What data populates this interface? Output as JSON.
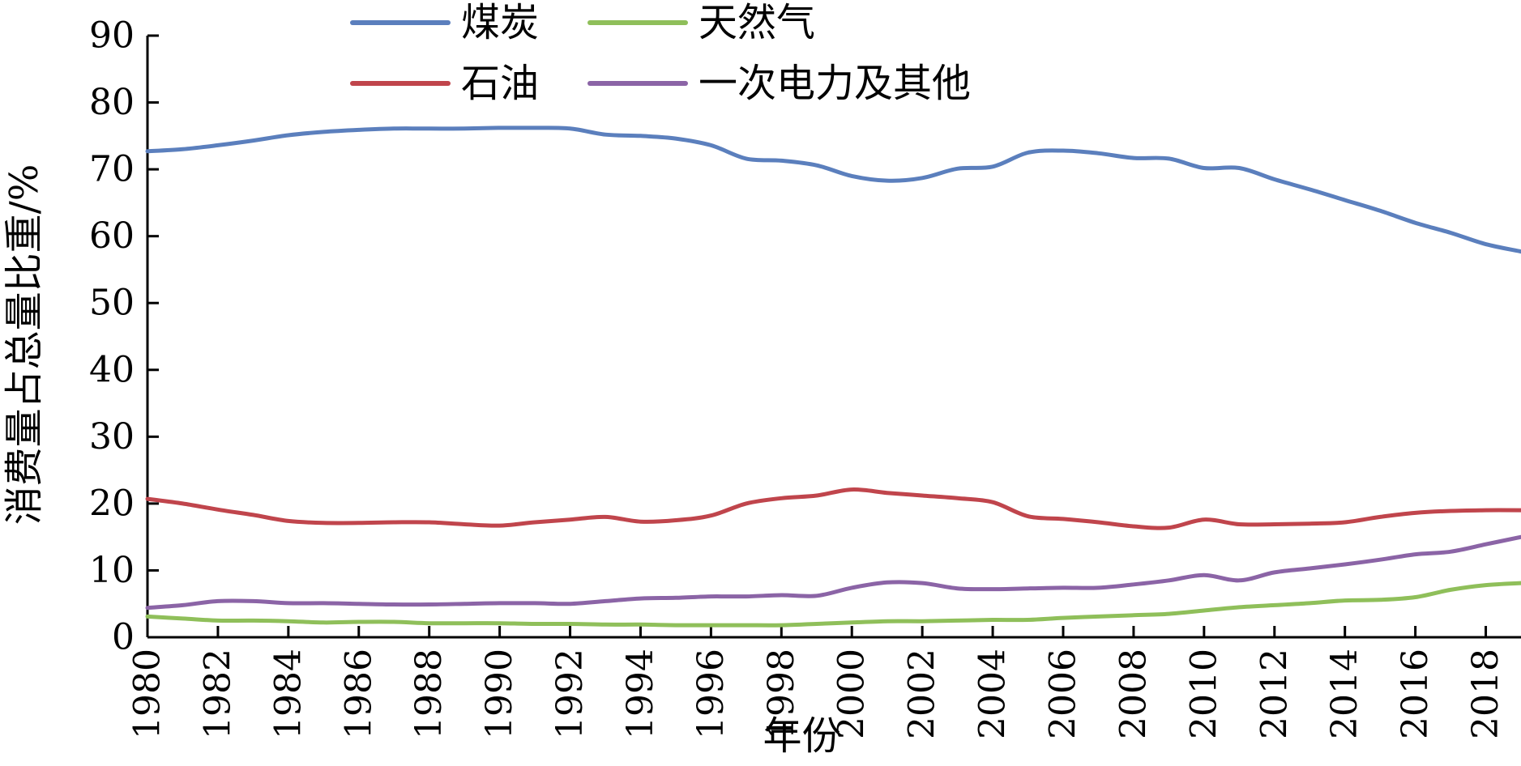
{
  "chart_data": {
    "type": "line",
    "title": "",
    "xlabel": "年份",
    "ylabel": "消费量占总量比重/%",
    "xlim": [
      1980,
      2019
    ],
    "ylim": [
      0,
      90
    ],
    "x_ticks": [
      1980,
      1982,
      1984,
      1986,
      1988,
      1990,
      1992,
      1994,
      1996,
      1998,
      2000,
      2002,
      2004,
      2006,
      2008,
      2010,
      2012,
      2014,
      2016,
      2018
    ],
    "y_ticks": [
      0,
      10,
      20,
      30,
      40,
      50,
      60,
      70,
      80,
      90
    ],
    "grid": false,
    "legend_position": "top",
    "x": [
      1980,
      1981,
      1982,
      1983,
      1984,
      1985,
      1986,
      1987,
      1988,
      1989,
      1990,
      1991,
      1992,
      1993,
      1994,
      1995,
      1996,
      1997,
      1998,
      1999,
      2000,
      2001,
      2002,
      2003,
      2004,
      2005,
      2006,
      2007,
      2008,
      2009,
      2010,
      2011,
      2012,
      2013,
      2014,
      2015,
      2016,
      2017,
      2018,
      2019
    ],
    "series": [
      {
        "name": "煤炭",
        "color": "#5b7fbd",
        "values": [
          72.7,
          73.0,
          73.6,
          74.3,
          75.1,
          75.6,
          75.9,
          76.1,
          76.1,
          76.1,
          76.2,
          76.2,
          76.1,
          75.2,
          75.0,
          74.6,
          73.6,
          71.6,
          71.3,
          70.6,
          69.0,
          68.3,
          68.7,
          70.1,
          70.4,
          72.5,
          72.8,
          72.4,
          71.7,
          71.6,
          70.2,
          70.2,
          68.5,
          67.0,
          65.4,
          63.8,
          62.0,
          60.5,
          58.8,
          57.7
        ]
      },
      {
        "name": "天然气",
        "color": "#8fbf5a",
        "values": [
          3.1,
          2.8,
          2.5,
          2.5,
          2.4,
          2.2,
          2.3,
          2.3,
          2.1,
          2.1,
          2.1,
          2.0,
          2.0,
          1.9,
          1.9,
          1.8,
          1.8,
          1.8,
          1.8,
          2.0,
          2.2,
          2.4,
          2.4,
          2.5,
          2.6,
          2.6,
          2.9,
          3.1,
          3.3,
          3.5,
          4.0,
          4.5,
          4.8,
          5.1,
          5.5,
          5.6,
          6.0,
          7.1,
          7.8,
          8.1
        ]
      },
      {
        "name": "石油",
        "color": "#c0454c",
        "values": [
          20.7,
          20.0,
          19.1,
          18.3,
          17.4,
          17.1,
          17.1,
          17.2,
          17.2,
          16.9,
          16.7,
          17.2,
          17.6,
          18.0,
          17.3,
          17.5,
          18.2,
          20.0,
          20.8,
          21.2,
          22.1,
          21.6,
          21.2,
          20.8,
          20.2,
          18.1,
          17.7,
          17.2,
          16.6,
          16.4,
          17.6,
          16.9,
          16.9,
          17.0,
          17.2,
          18.0,
          18.6,
          18.9,
          19.0,
          19.0
        ]
      },
      {
        "name": "一次电力及其他",
        "color": "#8b64a6",
        "values": [
          4.4,
          4.8,
          5.4,
          5.4,
          5.1,
          5.1,
          5.0,
          4.9,
          4.9,
          5.0,
          5.1,
          5.1,
          5.0,
          5.4,
          5.8,
          5.9,
          6.1,
          6.1,
          6.3,
          6.2,
          7.4,
          8.2,
          8.1,
          7.3,
          7.2,
          7.3,
          7.4,
          7.4,
          7.9,
          8.5,
          9.3,
          8.5,
          9.7,
          10.3,
          10.9,
          11.6,
          12.4,
          12.8,
          13.9,
          15.0
        ]
      }
    ]
  }
}
